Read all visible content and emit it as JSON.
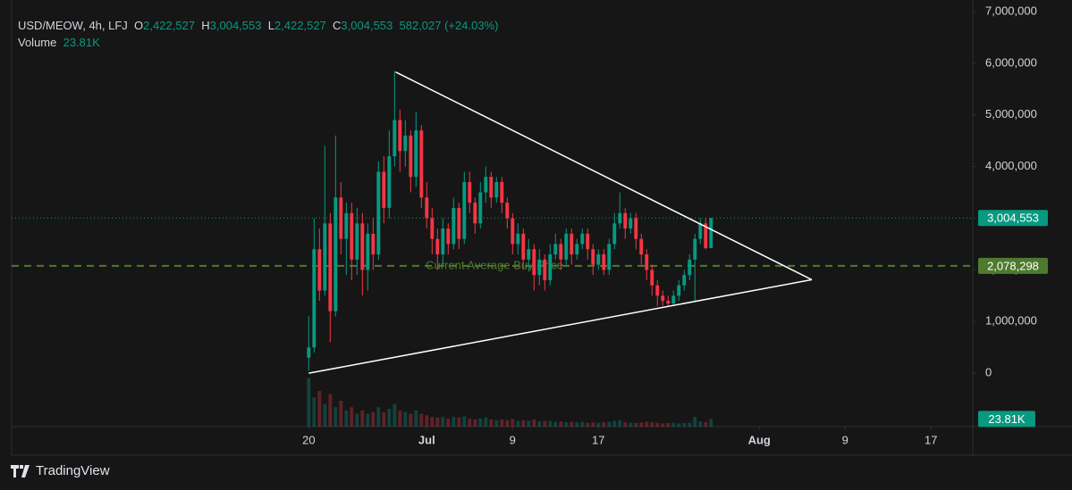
{
  "chart_data": {
    "type": "candlestick",
    "legend": {
      "symbol": "USD/MEOW, 4h, LFJ",
      "o_key": "O",
      "open": "2,422,527",
      "h_key": "H",
      "high": "3,004,553",
      "l_key": "L",
      "low": "2,422,527",
      "c_key": "C",
      "close": "3,004,553",
      "change": "582,027 (+24.03%)",
      "volume_key": "Volume",
      "volume": "23.81K"
    },
    "x": [
      20,
      20.5,
      21,
      21.5,
      22,
      22.5,
      23,
      23.5,
      24,
      24.5,
      25,
      25.5,
      26,
      26.5,
      27,
      27.5,
      28,
      28.5,
      29,
      29.5,
      30,
      30.5,
      31,
      31.5,
      32,
      32.5,
      33,
      33.5,
      34,
      34.5,
      35,
      35.5,
      36,
      36.5,
      37,
      37.5,
      38,
      38.5,
      39,
      39.5,
      40,
      40.5,
      41,
      41.5,
      42,
      42.5,
      43,
      43.5,
      44,
      44.5,
      45,
      45.5,
      46,
      46.5,
      47,
      47.5,
      48,
      48.5,
      49,
      49.5,
      50,
      50.5,
      51,
      51.5,
      52,
      52.5,
      53,
      53.5,
      54,
      54.5,
      55,
      55.5,
      56,
      56.5,
      57,
      57.5
    ],
    "open": [
      300000,
      500000,
      2400000,
      1600000,
      2900000,
      1200000,
      3400000,
      2600000,
      3100000,
      2200000,
      2900000,
      2000000,
      2700000,
      2300000,
      3900000,
      3200000,
      4200000,
      4900000,
      4300000,
      4600000,
      3800000,
      4700000,
      3400000,
      3000000,
      2600000,
      2300000,
      2800000,
      2500000,
      3200000,
      2600000,
      3700000,
      3300000,
      2900000,
      3500000,
      3800000,
      3400000,
      3700000,
      3300000,
      3000000,
      2500000,
      2700000,
      2200000,
      2400000,
      1900000,
      2200000,
      1800000,
      2300000,
      2500000,
      2200000,
      2700000,
      2300000,
      2500000,
      2700000,
      2400000,
      2100000,
      2300000,
      2000000,
      2500000,
      2900000,
      3100000,
      2800000,
      3000000,
      2600000,
      2300000,
      2000000,
      1700000,
      1500000,
      1400000,
      1350000,
      1500000,
      1700000,
      1900000,
      2200000,
      2600000,
      2900000,
      2422527
    ],
    "high": [
      1100000,
      3000000,
      2800000,
      4400000,
      3100000,
      4600000,
      3700000,
      3300000,
      3300000,
      3200000,
      3100000,
      2900000,
      3000000,
      4100000,
      4200000,
      4700000,
      5850000,
      5100000,
      4900000,
      4700000,
      5050000,
      4800000,
      3700000,
      3200000,
      2800000,
      3000000,
      2900000,
      3400000,
      3300000,
      3900000,
      3900000,
      3400000,
      3700000,
      4000000,
      3900000,
      3800000,
      3800000,
      3400000,
      3100000,
      2900000,
      2800000,
      2600000,
      2500000,
      2400000,
      2300000,
      2500000,
      2700000,
      2600000,
      2800000,
      2800000,
      2600000,
      2800000,
      2800000,
      2500000,
      2400000,
      2400000,
      2600000,
      3100000,
      3500000,
      3200000,
      3100000,
      3100000,
      2700000,
      2400000,
      2100000,
      1800000,
      1600000,
      1500000,
      1600000,
      1800000,
      2000000,
      2300000,
      2700000,
      3000000,
      3000000,
      3004553
    ],
    "low": [
      50000,
      400000,
      1400000,
      1500000,
      600000,
      1100000,
      2300000,
      1900000,
      1800000,
      1900000,
      1500000,
      1600000,
      2000000,
      2200000,
      2900000,
      3000000,
      4000000,
      3900000,
      4000000,
      3500000,
      3600000,
      3200000,
      2800000,
      2300000,
      2000000,
      2100000,
      2300000,
      2400000,
      2400000,
      2500000,
      3100000,
      2700000,
      2800000,
      3300000,
      3200000,
      3300000,
      3100000,
      2800000,
      2300000,
      2300000,
      2000000,
      2000000,
      1600000,
      1700000,
      1600000,
      1700000,
      2200000,
      2000000,
      2100000,
      2100000,
      2200000,
      2400000,
      2200000,
      1900000,
      2000000,
      1900000,
      1900000,
      2400000,
      2800000,
      2600000,
      2700000,
      2400000,
      2100000,
      1800000,
      1500000,
      1300000,
      1300000,
      1280000,
      1300000,
      1400000,
      1600000,
      1800000,
      1400000,
      2500000,
      2400000,
      2422527
    ],
    "close": [
      500000,
      2400000,
      1600000,
      2900000,
      1200000,
      3400000,
      2600000,
      3100000,
      2200000,
      2900000,
      2000000,
      2700000,
      2300000,
      3900000,
      3200000,
      4200000,
      4900000,
      4300000,
      4600000,
      3800000,
      4700000,
      3400000,
      3000000,
      2600000,
      2300000,
      2800000,
      2500000,
      3200000,
      2600000,
      3700000,
      3300000,
      2900000,
      3500000,
      3800000,
      3400000,
      3700000,
      3300000,
      3000000,
      2500000,
      2700000,
      2200000,
      2400000,
      1900000,
      2200000,
      1800000,
      2300000,
      2500000,
      2200000,
      2700000,
      2300000,
      2500000,
      2700000,
      2400000,
      2100000,
      2300000,
      2000000,
      2500000,
      2900000,
      3100000,
      2800000,
      3000000,
      2600000,
      2300000,
      2000000,
      1700000,
      1500000,
      1400000,
      1350000,
      1500000,
      1700000,
      1900000,
      2200000,
      2600000,
      2900000,
      2422527,
      3004553
    ],
    "volume": [
      150000,
      90000,
      110000,
      70000,
      100000,
      60000,
      80000,
      50000,
      60000,
      40000,
      50000,
      40000,
      45000,
      60000,
      45000,
      55000,
      70000,
      50000,
      45000,
      40000,
      50000,
      40000,
      35000,
      30000,
      28000,
      30000,
      25000,
      30000,
      28000,
      32000,
      25000,
      22000,
      25000,
      28000,
      22000,
      20000,
      22000,
      20000,
      24000,
      18000,
      20000,
      18000,
      22000,
      16000,
      18000,
      17000,
      15000,
      16000,
      14000,
      15000,
      13000,
      14000,
      12000,
      13000,
      12000,
      14000,
      15000,
      18000,
      20000,
      14000,
      12000,
      11000,
      13000,
      15000,
      14000,
      12000,
      10000,
      11000,
      12000,
      10000,
      11000,
      12000,
      30000,
      16000,
      14000,
      23810
    ],
    "up_color": "#089981",
    "down_color": "#f23645",
    "xlim": [
      -7.7,
      81.9
    ],
    "xticks": [
      {
        "value": 20,
        "label": "20"
      },
      {
        "value": 31,
        "label": "Jul"
      },
      {
        "value": 39,
        "label": "9"
      },
      {
        "value": 47,
        "label": "17"
      },
      {
        "value": 62,
        "label": "Aug"
      },
      {
        "value": 70,
        "label": "9"
      },
      {
        "value": 78,
        "label": "17"
      }
    ],
    "ylim": [
      -1034000,
      7224000
    ],
    "yticks": [
      0,
      {
        "value": 1000000,
        "label": "1,000,000"
      },
      {
        "value": 2000000,
        "label": "2,000,000"
      },
      {
        "value": 3000000,
        "label": "3,000,000"
      },
      {
        "value": 4000000,
        "label": "4,000,000"
      },
      {
        "value": 5000000,
        "label": "5,000,000"
      },
      {
        "value": 6000000,
        "label": "6,000,000"
      },
      {
        "value": 7000000,
        "label": "7,000,000"
      }
    ],
    "volume_lim": [
      0,
      160000
    ],
    "volume_tag": {
      "value": 23810,
      "label": "23.81K",
      "color": "#089981"
    },
    "price_lines": [
      {
        "value": 3004553,
        "label": "3,004,553",
        "color": "#089981",
        "style": "dotted"
      },
      {
        "value": 2078298,
        "label": "2,078,298",
        "color": "#4e7a2d",
        "style": "dashed",
        "annotation": "Current Average Buy Price"
      }
    ],
    "trendlines": [
      {
        "x": [
          28.1,
          66.9
        ],
        "y": [
          5830000,
          1810000
        ],
        "color": "#ffffff"
      },
      {
        "x": [
          20,
          66.9
        ],
        "y": [
          0,
          1810000
        ],
        "color": "#ffffff"
      }
    ],
    "brand": "TradingView"
  }
}
